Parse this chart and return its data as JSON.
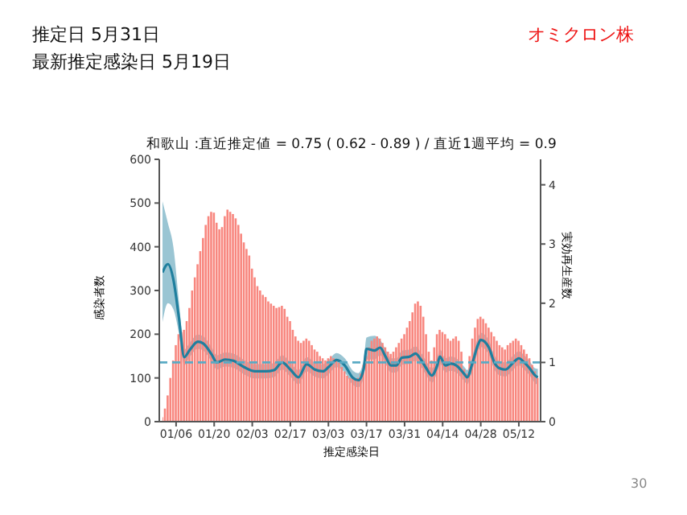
{
  "chart_data": {
    "type": "bar",
    "title": "和歌山 :直近推定値 = 0.75 ( 0.62 - 0.89 ) / 直近1週平均 = 0.9",
    "xlabel": "推定感染日",
    "ylabel": "感染者数",
    "y2label": "実効再生産数",
    "annotations": [
      "推定日  5月31日",
      "最新推定感染日  5月19日",
      "オミクロン株",
      "30"
    ],
    "x": [
      "--01-01",
      "--01-02",
      "--01-03",
      "--01-04",
      "--01-05",
      "--01-06",
      "--01-07",
      "--01-08",
      "--01-09",
      "--01-10",
      "--01-11",
      "--01-12",
      "--01-13",
      "--01-14",
      "--01-15",
      "--01-16",
      "--01-17",
      "--01-18",
      "--01-19",
      "--01-20",
      "--01-21",
      "--01-22",
      "--01-23",
      "--01-24",
      "--01-25",
      "--01-26",
      "--01-27",
      "--01-28",
      "--01-29",
      "--01-30",
      "--01-31",
      "--02-01",
      "--02-02",
      "--02-03",
      "--02-04",
      "--02-05",
      "--02-06",
      "--02-07",
      "--02-08",
      "--02-09",
      "--02-10",
      "--02-11",
      "--02-12",
      "--02-13",
      "--02-14",
      "--02-15",
      "--02-16",
      "--02-17",
      "--02-18",
      "--02-19",
      "--02-20",
      "--02-21",
      "--02-22",
      "--02-23",
      "--02-24",
      "--02-25",
      "--02-26",
      "--02-27",
      "--02-28",
      "--03-01",
      "--03-02",
      "--03-03",
      "--03-04",
      "--03-05",
      "--03-06",
      "--03-07",
      "--03-08",
      "--03-09",
      "--03-10",
      "--03-11",
      "--03-12",
      "--03-13",
      "--03-14",
      "--03-15",
      "--03-16",
      "--03-17",
      "--03-18",
      "--03-19",
      "--03-20",
      "--03-21",
      "--03-22",
      "--03-23",
      "--03-24",
      "--03-25",
      "--03-26",
      "--03-27",
      "--03-28",
      "--03-29",
      "--03-30",
      "--03-31",
      "--04-01",
      "--04-02",
      "--04-03",
      "--04-04",
      "--04-05",
      "--04-06",
      "--04-07",
      "--04-08",
      "--04-09",
      "--04-10",
      "--04-11",
      "--04-12",
      "--04-13",
      "--04-14",
      "--04-15",
      "--04-16",
      "--04-17",
      "--04-18",
      "--04-19",
      "--04-20",
      "--04-21",
      "--04-22",
      "--04-23",
      "--04-24",
      "--04-25",
      "--04-26",
      "--04-27",
      "--04-28",
      "--04-29",
      "--04-30",
      "--05-01",
      "--05-02",
      "--05-03",
      "--05-04",
      "--05-05",
      "--05-06",
      "--05-07",
      "--05-08",
      "--05-09",
      "--05-10",
      "--05-11",
      "--05-12",
      "--05-13",
      "--05-14",
      "--05-15",
      "--05-16",
      "--05-17",
      "--05-18",
      "--05-19"
    ],
    "series": [
      {
        "color": "#f8877f",
        "values": [
          10,
          30,
          60,
          100,
          140,
          175,
          200,
          205,
          210,
          230,
          260,
          300,
          330,
          360,
          390,
          420,
          450,
          470,
          480,
          478,
          455,
          440,
          445,
          470,
          485,
          480,
          475,
          465,
          450,
          430,
          410,
          395,
          380,
          350,
          330,
          310,
          300,
          290,
          285,
          275,
          270,
          265,
          260,
          262,
          265,
          258,
          240,
          230,
          210,
          195,
          185,
          180,
          185,
          190,
          185,
          175,
          165,
          160,
          150,
          145,
          140,
          145,
          150,
          145,
          140,
          135,
          125,
          115,
          105,
          100,
          100,
          95,
          100,
          110,
          130,
          150,
          170,
          185,
          190,
          195,
          190,
          180,
          170,
          160,
          155,
          160,
          170,
          180,
          190,
          200,
          215,
          230,
          250,
          270,
          275,
          265,
          240,
          200,
          160,
          140,
          170,
          200,
          210,
          205,
          200,
          190,
          185,
          190,
          195,
          185,
          160,
          120,
          110,
          150,
          190,
          215,
          235,
          240,
          235,
          225,
          215,
          205,
          195,
          185,
          175,
          170,
          165,
          175,
          180,
          185,
          190,
          185,
          175,
          165,
          155,
          145,
          130,
          115,
          100
        ]
      },
      {
        "type": "line",
        "axis": "y2",
        "color": "#1f7f9e",
        "x": [
          "--01-01",
          "--01-03",
          "--01-05",
          "--01-07",
          "--01-09",
          "--01-11",
          "--01-14",
          "--01-16",
          "--01-19",
          "--01-21",
          "--01-24",
          "--01-27",
          "--01-31",
          "--02-04",
          "--02-08",
          "--02-11",
          "--02-14",
          "--02-17",
          "--02-20",
          "--02-23",
          "--02-26",
          "--03-01",
          "--03-03",
          "--03-06",
          "--03-09",
          "--03-12",
          "--03-14",
          "--03-16",
          "--03-17",
          "--03-20",
          "--03-22",
          "--03-24",
          "--03-26",
          "--03-28",
          "--03-30",
          "--04-02",
          "--04-04",
          "--04-06",
          "--04-08",
          "--04-10",
          "--04-12",
          "--04-13",
          "--04-15",
          "--04-17",
          "--04-19",
          "--04-22",
          "--04-23",
          "--04-25",
          "--04-27",
          "--04-28",
          "--05-01",
          "--05-03",
          "--05-05",
          "--05-07",
          "--05-10",
          "--05-12",
          "--05-14",
          "--05-16",
          "--05-18",
          "--05-19"
        ],
        "values": [
          2.52,
          2.66,
          2.4,
          1.77,
          1.09,
          1.21,
          1.35,
          1.32,
          1.14,
          1.0,
          1.05,
          1.03,
          0.92,
          0.85,
          0.85,
          0.87,
          1.0,
          0.88,
          0.75,
          0.97,
          0.88,
          0.85,
          0.92,
          1.04,
          0.95,
          0.74,
          0.7,
          0.9,
          1.23,
          1.2,
          1.25,
          1.1,
          0.95,
          0.95,
          1.08,
          1.1,
          1.15,
          1.05,
          0.9,
          0.78,
          0.95,
          1.1,
          0.95,
          0.98,
          0.95,
          0.8,
          0.75,
          1.0,
          1.3,
          1.38,
          1.25,
          1.0,
          0.9,
          0.88,
          1.0,
          1.07,
          1.0,
          0.9,
          0.78,
          0.75
        ],
        "lower": [
          1.68,
          2.0,
          1.9,
          1.5,
          0.95,
          1.09,
          1.23,
          1.2,
          1.02,
          0.88,
          0.93,
          0.91,
          0.8,
          0.73,
          0.73,
          0.75,
          0.88,
          0.76,
          0.63,
          0.85,
          0.76,
          0.73,
          0.8,
          0.92,
          0.83,
          0.62,
          0.58,
          0.75,
          1.05,
          1.05,
          1.12,
          0.98,
          0.83,
          0.83,
          0.96,
          0.98,
          1.03,
          0.93,
          0.78,
          0.66,
          0.83,
          0.98,
          0.83,
          0.86,
          0.83,
          0.68,
          0.63,
          0.88,
          1.18,
          1.26,
          1.13,
          0.88,
          0.78,
          0.76,
          0.88,
          0.95,
          0.88,
          0.78,
          0.65,
          0.62
        ],
        "upper": [
          3.72,
          3.35,
          2.95,
          2.05,
          1.22,
          1.33,
          1.47,
          1.44,
          1.26,
          1.12,
          1.17,
          1.15,
          1.04,
          0.97,
          0.97,
          0.99,
          1.12,
          1.0,
          0.87,
          1.09,
          1.0,
          0.97,
          1.04,
          1.16,
          1.07,
          0.86,
          0.82,
          1.05,
          1.42,
          1.45,
          1.38,
          1.22,
          1.07,
          1.07,
          1.2,
          1.22,
          1.27,
          1.17,
          1.02,
          0.9,
          1.07,
          1.22,
          1.07,
          1.1,
          1.07,
          0.92,
          0.87,
          1.12,
          1.42,
          1.5,
          1.37,
          1.12,
          1.02,
          1.0,
          1.12,
          1.19,
          1.12,
          1.02,
          0.9,
          0.89
        ]
      }
    ],
    "xlim": [
      "--01-01",
      "--05-20"
    ],
    "xticks": [
      {
        "value": "--01-06",
        "label": "01/06"
      },
      {
        "value": "--01-20",
        "label": "01/20"
      },
      {
        "value": "--02-03",
        "label": "02/03"
      },
      {
        "value": "--02-17",
        "label": "02/17"
      },
      {
        "value": "--03-03",
        "label": "03/03"
      },
      {
        "value": "--03-17",
        "label": "03/17"
      },
      {
        "value": "--03-31",
        "label": "03/31"
      },
      {
        "value": "--04-14",
        "label": "04/14"
      },
      {
        "value": "--04-28",
        "label": "04/28"
      },
      {
        "value": "--05-12",
        "label": "05/12"
      }
    ],
    "ylim": [
      0,
      600
    ],
    "yticks": [
      0,
      100,
      200,
      300,
      400,
      500,
      600
    ],
    "y2lim": [
      0,
      4.43
    ],
    "y2ticks": [
      0,
      1,
      2,
      3,
      4
    ],
    "ref_lines": [
      {
        "axis": "y2",
        "value": 1,
        "color": "#5aaac4",
        "line_style": "dashed"
      }
    ],
    "grid": false,
    "legend": false
  }
}
